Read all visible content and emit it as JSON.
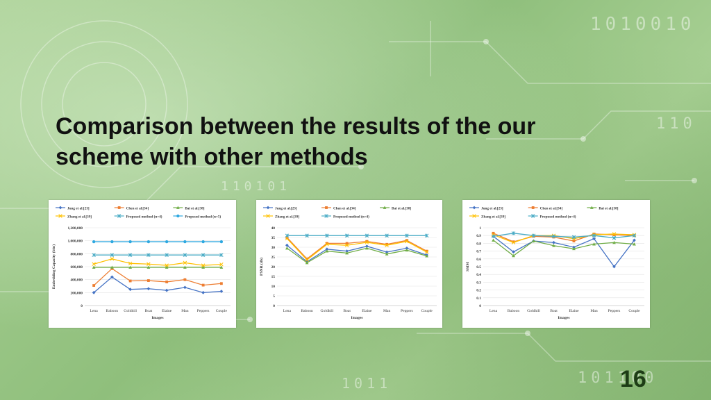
{
  "slide": {
    "title_line1": "Comparison between the results of the our",
    "title_line2": "scheme with other methods",
    "page_number": "16",
    "bits_top_right": "1010010",
    "bits_right": "110",
    "bits_mid": "110101",
    "bits_bottom": "1011",
    "bits_bottom_right": "101100"
  },
  "colors": {
    "jung": "#4472c4",
    "chen": "#ed7d31",
    "bai": "#70ad47",
    "zhang": "#ffc000",
    "prop4": "#4bacc6",
    "prop5": "#2ea8e0"
  },
  "chart_data": [
    {
      "type": "line",
      "title": "",
      "xlabel": "Images",
      "ylabel": "Embedding Capacity (bits)",
      "ylim": [
        0,
        1200000
      ],
      "yticks": [
        0,
        200000,
        400000,
        600000,
        800000,
        1000000,
        1200000
      ],
      "ytick_labels": [
        "0",
        "200,000",
        "400,000",
        "600,000",
        "800,000",
        "1,000,000",
        "1,200,000"
      ],
      "categories": [
        "Lena",
        "Baboon",
        "Goldhill",
        "Boat",
        "Elaine",
        "Man",
        "Peppers",
        "Couple"
      ],
      "legend_position": "top",
      "series": [
        {
          "name": "Jung et al.[23]",
          "color": "jung",
          "marker": "diamond",
          "values": [
            200000,
            440000,
            250000,
            260000,
            235000,
            280000,
            200000,
            220000
          ]
        },
        {
          "name": "Chen et al.[34]",
          "color": "chen",
          "marker": "square",
          "values": [
            310000,
            570000,
            380000,
            385000,
            365000,
            400000,
            315000,
            340000
          ]
        },
        {
          "name": "Bai et al.[38]",
          "color": "bai",
          "marker": "triangle",
          "values": [
            590000,
            590000,
            590000,
            590000,
            590000,
            590000,
            590000,
            590000
          ]
        },
        {
          "name": "Zhang et al.[39]",
          "color": "zhang",
          "marker": "x",
          "values": [
            640000,
            720000,
            650000,
            640000,
            620000,
            660000,
            620000,
            635000
          ]
        },
        {
          "name": "Proposed method (n=4)",
          "color": "prop4",
          "marker": "star",
          "values": [
            780000,
            780000,
            780000,
            780000,
            780000,
            780000,
            780000,
            780000
          ]
        },
        {
          "name": "Proposed method (n=5)",
          "color": "prop5",
          "marker": "circle",
          "values": [
            985000,
            985000,
            985000,
            985000,
            985000,
            985000,
            985000,
            985000
          ]
        }
      ]
    },
    {
      "type": "line",
      "title": "",
      "xlabel": "Images",
      "ylabel": "PSNR (db)",
      "ylim": [
        0,
        40
      ],
      "yticks": [
        0,
        5,
        10,
        15,
        20,
        25,
        30,
        35,
        40
      ],
      "ytick_labels": [
        "0",
        "5",
        "10",
        "15",
        "20",
        "25",
        "30",
        "35",
        "40"
      ],
      "categories": [
        "Lena",
        "Baboon",
        "Goldhill",
        "Boat",
        "Elaine",
        "Man",
        "Peppers",
        "Couple"
      ],
      "legend_position": "top",
      "series": [
        {
          "name": "Jung et al.[23]",
          "color": "jung",
          "marker": "diamond",
          "values": [
            31,
            22.5,
            29,
            28,
            30.5,
            27.5,
            29.5,
            26
          ]
        },
        {
          "name": "Chen et al.[34]",
          "color": "chen",
          "marker": "square",
          "values": [
            35,
            24,
            32,
            32,
            33,
            31.5,
            33.5,
            28
          ]
        },
        {
          "name": "Bai et al.[38]",
          "color": "bai",
          "marker": "triangle",
          "values": [
            29.5,
            22,
            28,
            27,
            29.5,
            26.5,
            28.5,
            25.5
          ]
        },
        {
          "name": "Zhang et al.[39]",
          "color": "zhang",
          "marker": "x",
          "values": [
            34.5,
            23.5,
            31.5,
            31,
            32.5,
            31,
            33,
            27.5
          ]
        },
        {
          "name": "Proposed method (n=4)",
          "color": "prop4",
          "marker": "star",
          "values": [
            36,
            36,
            36,
            36,
            36,
            36,
            36,
            36
          ]
        }
      ]
    },
    {
      "type": "line",
      "title": "",
      "xlabel": "Images",
      "ylabel": "SSIM",
      "ylim": [
        0,
        1
      ],
      "yticks": [
        0,
        0.1,
        0.2,
        0.3,
        0.4,
        0.5,
        0.6,
        0.7,
        0.8,
        0.9,
        1
      ],
      "ytick_labels": [
        "0",
        "0.1",
        "0.2",
        "0.3",
        "0.4",
        "0.5",
        "0.6",
        "0.7",
        "0.8",
        "0.9",
        "1"
      ],
      "categories": [
        "Lena",
        "Baboon",
        "Goldhill",
        "Boat",
        "Elaine",
        "Man",
        "Peppers",
        "Couple"
      ],
      "legend_position": "top",
      "series": [
        {
          "name": "Jung et al.[23]",
          "color": "jung",
          "marker": "diamond",
          "values": [
            0.89,
            0.69,
            0.83,
            0.81,
            0.75,
            0.86,
            0.5,
            0.84
          ]
        },
        {
          "name": "Chen et al.[34]",
          "color": "chen",
          "marker": "square",
          "values": [
            0.93,
            0.82,
            0.89,
            0.88,
            0.83,
            0.92,
            0.91,
            0.9
          ]
        },
        {
          "name": "Bai et al.[38]",
          "color": "bai",
          "marker": "triangle",
          "values": [
            0.84,
            0.64,
            0.83,
            0.77,
            0.73,
            0.79,
            0.81,
            0.79
          ]
        },
        {
          "name": "Zhang et al.[39]",
          "color": "zhang",
          "marker": "x",
          "values": [
            0.91,
            0.81,
            0.9,
            0.9,
            0.86,
            0.91,
            0.92,
            0.91
          ]
        },
        {
          "name": "Proposed method (n=4)",
          "color": "prop4",
          "marker": "star",
          "values": [
            0.89,
            0.93,
            0.9,
            0.89,
            0.88,
            0.9,
            0.87,
            0.9
          ]
        }
      ]
    }
  ]
}
